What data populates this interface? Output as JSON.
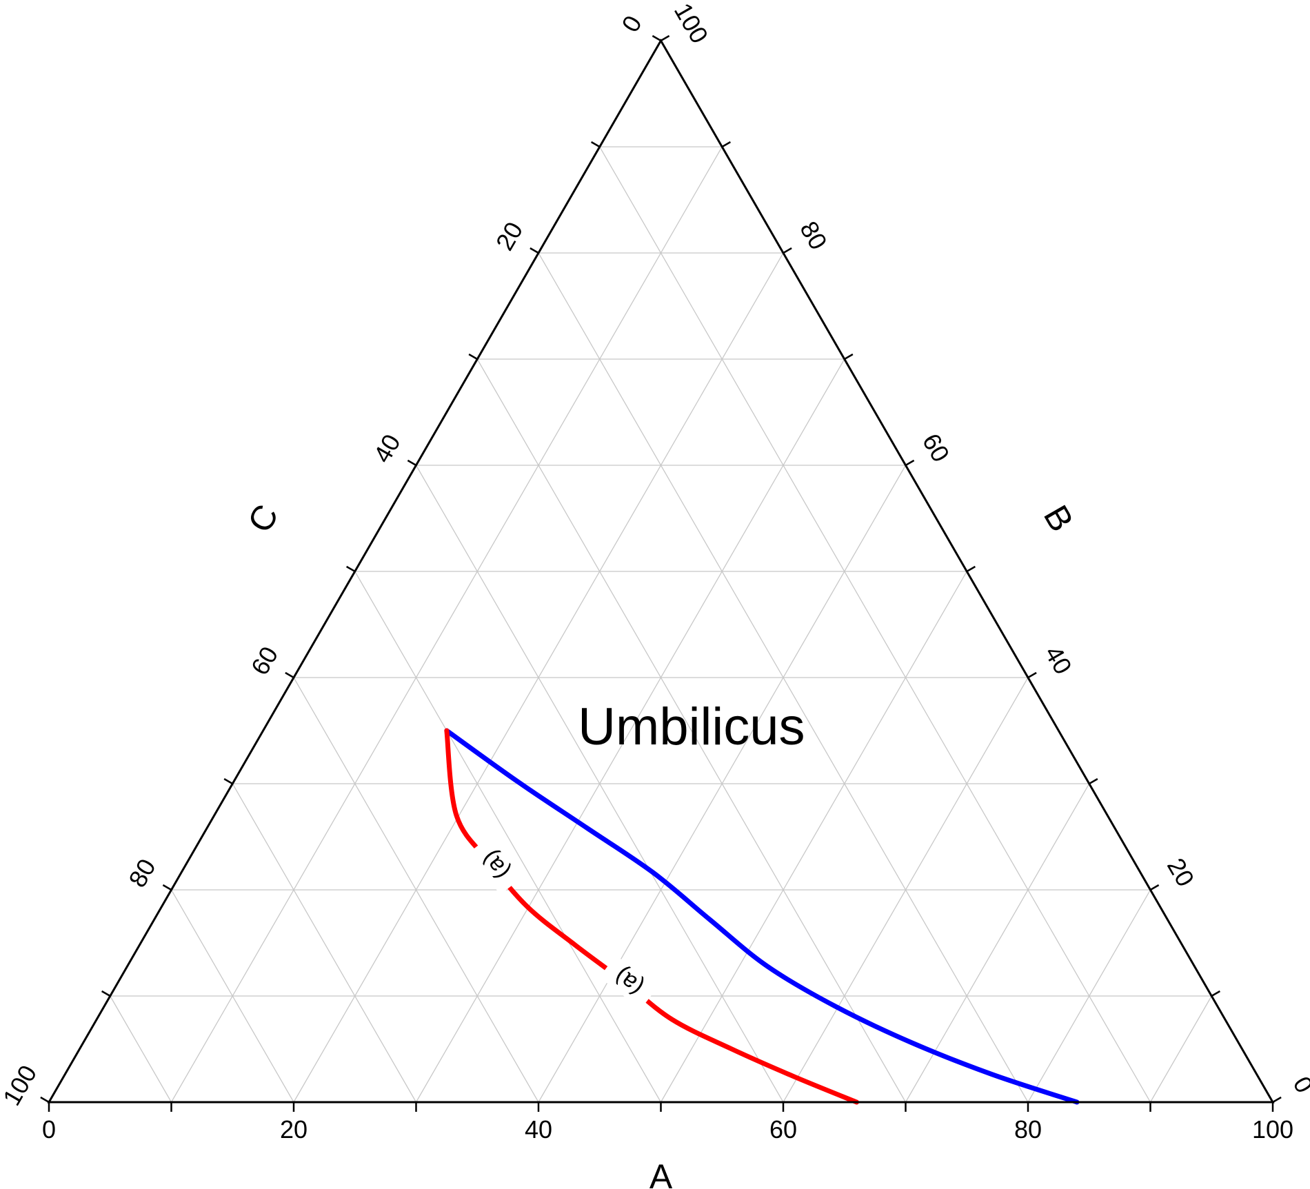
{
  "chart_data": {
    "type": "ternary",
    "axes": {
      "a": {
        "label": "A",
        "range": [
          0,
          100
        ],
        "tick_labels": [
          "0",
          "20",
          "40",
          "60",
          "80",
          "100"
        ]
      },
      "b": {
        "label": "B",
        "range": [
          0,
          100
        ],
        "tick_labels": [
          "0",
          "20",
          "40",
          "60",
          "80",
          "100"
        ]
      },
      "c": {
        "label": "C",
        "range": [
          0,
          100
        ],
        "tick_labels": [
          "0",
          "20",
          "40",
          "60",
          "80",
          "100"
        ]
      }
    },
    "grid": true,
    "grid_step": 10,
    "annotations": [
      {
        "text": "Umbilicus",
        "a": 35,
        "b": 35,
        "c": 30
      }
    ],
    "series": [
      {
        "color": "#0000ff",
        "points": [
          {
            "a": 84,
            "b": 0,
            "c": 16
          },
          {
            "a": 75.8,
            "b": 2.6,
            "c": 21.6
          },
          {
            "a": 67.7,
            "b": 5.6,
            "c": 26.7
          },
          {
            "a": 59.8,
            "b": 9.0,
            "c": 31.2
          },
          {
            "a": 52.3,
            "b": 12.8,
            "c": 34.9
          },
          {
            "a": 45.4,
            "b": 17.2,
            "c": 37.4
          },
          {
            "a": 38.6,
            "b": 21.6,
            "c": 39.8
          },
          {
            "a": 31.1,
            "b": 25.8,
            "c": 43.1
          },
          {
            "a": 23.2,
            "b": 30.2,
            "c": 46.6
          },
          {
            "a": 15.0,
            "b": 35.0,
            "c": 50.0
          }
        ]
      },
      {
        "color": "#ff0000",
        "label": "(a)",
        "points": [
          {
            "a": 66,
            "b": 0,
            "c": 34
          },
          {
            "a": 59.7,
            "b": 2.4,
            "c": 37.9
          },
          {
            "a": 53.3,
            "b": 5.0,
            "c": 41.7
          },
          {
            "a": 47.0,
            "b": 7.8,
            "c": 45.2
          },
          {
            "a": 41.4,
            "b": 11.3,
            "c": 47.3
          },
          {
            "a": 35.6,
            "b": 14.8,
            "c": 49.6
          },
          {
            "a": 29.9,
            "b": 18.4,
            "c": 51.7
          },
          {
            "a": 24.7,
            "b": 22.6,
            "c": 52.7
          },
          {
            "a": 19.8,
            "b": 27.0,
            "c": 53.2
          },
          {
            "a": 15.0,
            "b": 35.0,
            "c": 50.0
          }
        ],
        "label_positions": [
          {
            "a": 41.7,
            "b": 11.3,
            "c": 47.0
          },
          {
            "a": 25.3,
            "b": 22.3,
            "c": 52.4
          }
        ]
      }
    ]
  }
}
